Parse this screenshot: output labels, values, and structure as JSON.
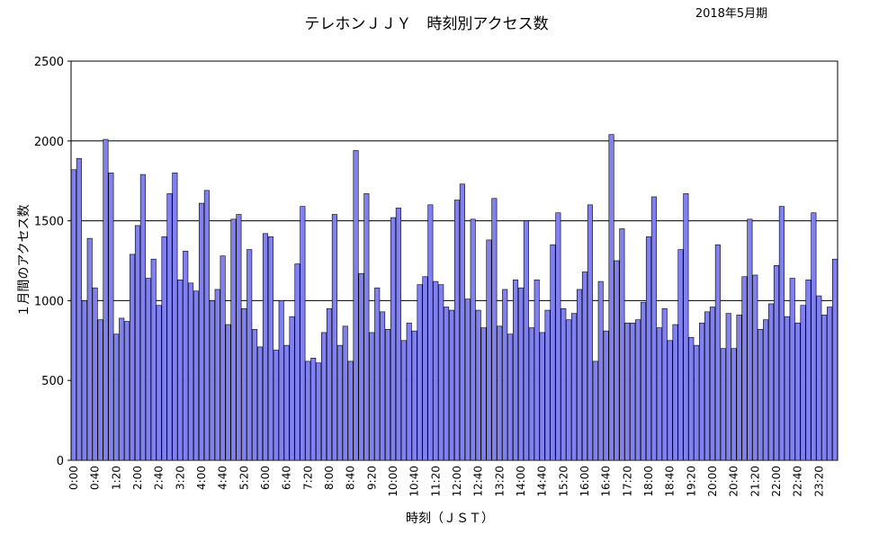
{
  "chart_data": {
    "type": "bar",
    "title": "テレホンＪＪＹ　時刻別アクセス数",
    "period_label": "2018年5月期",
    "xlabel": "時刻（ＪＳＴ）",
    "ylabel": "１月間のアクセス数",
    "ylim": [
      0,
      2500
    ],
    "yticks": [
      "0",
      "500",
      "1000",
      "1500",
      "2000",
      "2500"
    ],
    "grid": true,
    "legend": "none",
    "bar_color": "#8080f0",
    "xtick_labels": [
      "0:00",
      "0:40",
      "1:20",
      "2:00",
      "2:40",
      "3:20",
      "4:00",
      "4:40",
      "5:20",
      "6:00",
      "6:40",
      "7:20",
      "8:00",
      "8:40",
      "9:20",
      "10:00",
      "10:40",
      "11:20",
      "12:00",
      "12:40",
      "13:20",
      "14:00",
      "14:40",
      "15:20",
      "16:00",
      "16:40",
      "17:20",
      "18:00",
      "18:40",
      "19:20",
      "20:00",
      "20:40",
      "21:20",
      "22:00",
      "22:40",
      "23:20"
    ],
    "values": [
      1820,
      1890,
      1000,
      1390,
      1080,
      880,
      2010,
      1800,
      790,
      890,
      870,
      1290,
      1470,
      1790,
      1140,
      1260,
      970,
      1400,
      1670,
      1800,
      1130,
      1310,
      1110,
      1060,
      1610,
      1690,
      1000,
      1070,
      1280,
      850,
      1510,
      1540,
      950,
      1320,
      820,
      710,
      1420,
      1400,
      690,
      1000,
      720,
      900,
      1230,
      1590,
      620,
      640,
      610,
      800,
      950,
      1540,
      720,
      840,
      620,
      1940,
      1170,
      1670,
      800,
      1080,
      930,
      820,
      1520,
      1580,
      750,
      860,
      810,
      1100,
      1150,
      1600,
      1120,
      1100,
      960,
      940,
      1630,
      1730,
      1010,
      1510,
      940,
      830,
      1380,
      1640,
      840,
      1070,
      790,
      1130,
      1080,
      1500,
      830,
      1130,
      800,
      940,
      1350,
      1550,
      950,
      880,
      920,
      1070,
      1180,
      1600,
      620,
      1120,
      810,
      2040,
      1250,
      1450,
      860,
      860,
      880,
      990,
      1400,
      1650,
      830,
      950,
      750,
      850,
      1320,
      1670,
      770,
      720,
      860,
      930,
      960,
      1350,
      700,
      920,
      700,
      910,
      1150,
      1510,
      1160,
      820,
      880,
      980,
      1220,
      1590,
      900,
      1140,
      860,
      970,
      1130,
      1550,
      1030,
      910,
      960,
      1260
    ]
  }
}
